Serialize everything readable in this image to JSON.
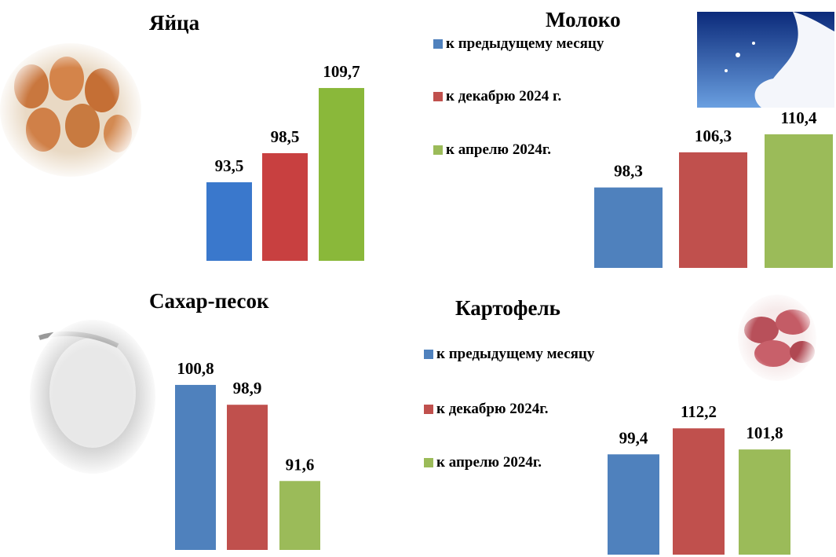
{
  "chart_data": [
    {
      "type": "bar",
      "title": "Яйца",
      "values": [
        93.5,
        98.5,
        109.7
      ],
      "value_labels": [
        "93,5",
        "98,5",
        "109,7"
      ],
      "colors": [
        "#3a78cc",
        "#c84040",
        "#8ab83a"
      ],
      "ylim": [
        80,
        112
      ]
    },
    {
      "type": "bar",
      "title": "Молоко",
      "categories": [
        "к предыдущему месяцу",
        "к  декабрю 2024 г.",
        "к апрелю  2024г."
      ],
      "values": [
        98.3,
        106.3,
        110.4
      ],
      "value_labels": [
        "98,3",
        "106,3",
        "110,4"
      ],
      "colors": [
        "#4f81bd",
        "#c0504d",
        "#9bbb59"
      ],
      "ylim": [
        80,
        112
      ]
    },
    {
      "type": "bar",
      "title": "Сахар-песок",
      "values": [
        100.8,
        98.9,
        91.6
      ],
      "value_labels": [
        "100,8",
        "98,9",
        "91,6"
      ],
      "colors": [
        "#4f81bd",
        "#c0504d",
        "#9bbb59"
      ],
      "ylim": [
        85,
        102
      ]
    },
    {
      "type": "bar",
      "title": "Картофель",
      "categories": [
        "к предыдущему месяцу",
        "к  декабрю 2024г.",
        "к апрелю  2024г."
      ],
      "values": [
        99.4,
        112.2,
        101.8
      ],
      "value_labels": [
        "99,4",
        "112,2",
        "101,8"
      ],
      "colors": [
        "#4f81bd",
        "#c0504d",
        "#9bbb59"
      ],
      "ylim": [
        50,
        115
      ]
    }
  ]
}
